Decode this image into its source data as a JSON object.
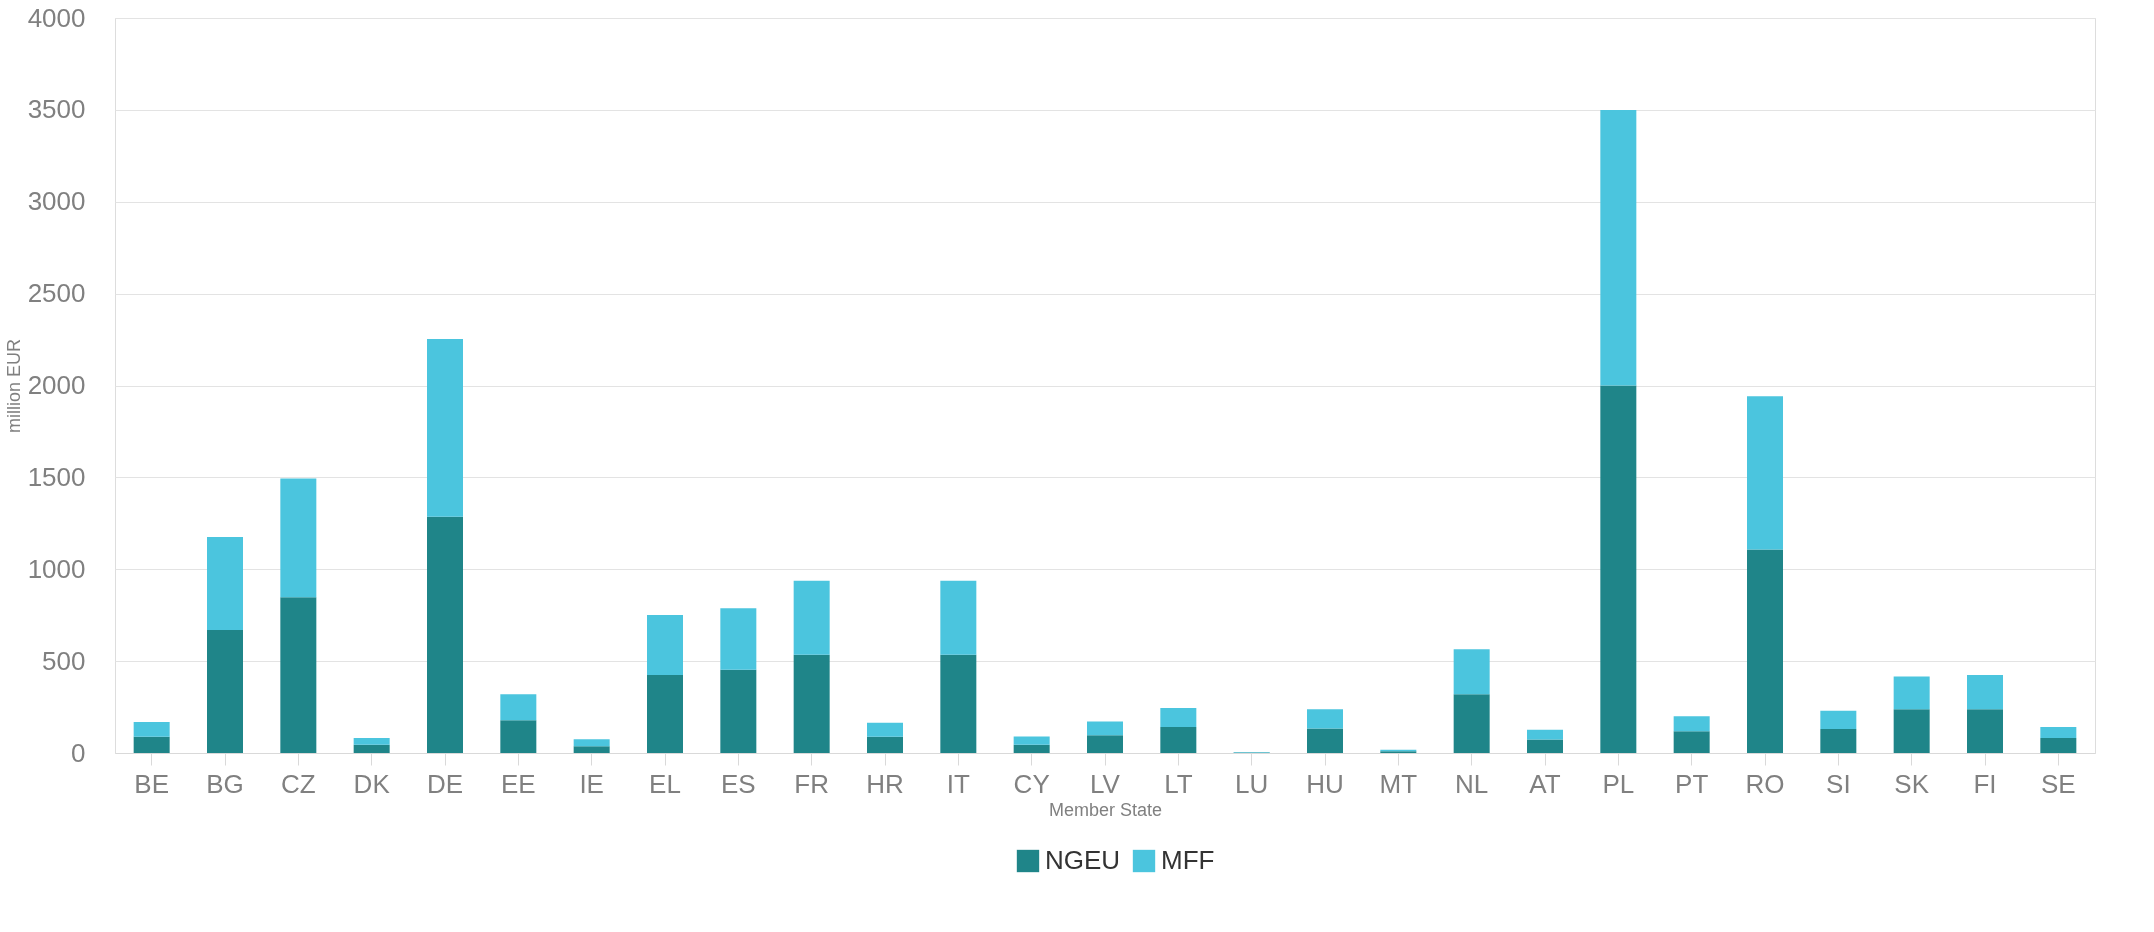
{
  "chart_data": {
    "type": "bar",
    "stacked": true,
    "xlabel": "Member State",
    "ylabel": "million EUR",
    "categories": [
      "BE",
      "BG",
      "CZ",
      "DK",
      "DE",
      "EE",
      "IE",
      "EL",
      "ES",
      "FR",
      "HR",
      "IT",
      "CY",
      "LV",
      "LT",
      "LU",
      "HU",
      "MT",
      "NL",
      "AT",
      "PL",
      "PT",
      "RO",
      "SI",
      "SK",
      "FI",
      "SE"
    ],
    "series": [
      {
        "name": "NGEU",
        "color": "#1f8589",
        "values": [
          89,
          670,
          848,
          45,
          1286,
          178,
          37,
          424,
          453,
          535,
          89,
          535,
          45,
          97,
          141,
          3,
          134,
          10,
          320,
          74,
          2000,
          119,
          1108,
          130,
          238,
          238,
          82
        ]
      },
      {
        "name": "MFF",
        "color": "#4bc5de",
        "values": [
          80,
          505,
          646,
          37,
          967,
          142,
          38,
          327,
          335,
          402,
          75,
          402,
          45,
          74,
          104,
          3,
          104,
          8,
          245,
          52,
          1500,
          81,
          833,
          100,
          178,
          186,
          59
        ]
      }
    ],
    "ylim": [
      0,
      4000
    ],
    "yticks": [
      0,
      500,
      1000,
      1500,
      2000,
      2500,
      3000,
      3500,
      4000
    ],
    "grid": "y",
    "legend": "bottom"
  }
}
